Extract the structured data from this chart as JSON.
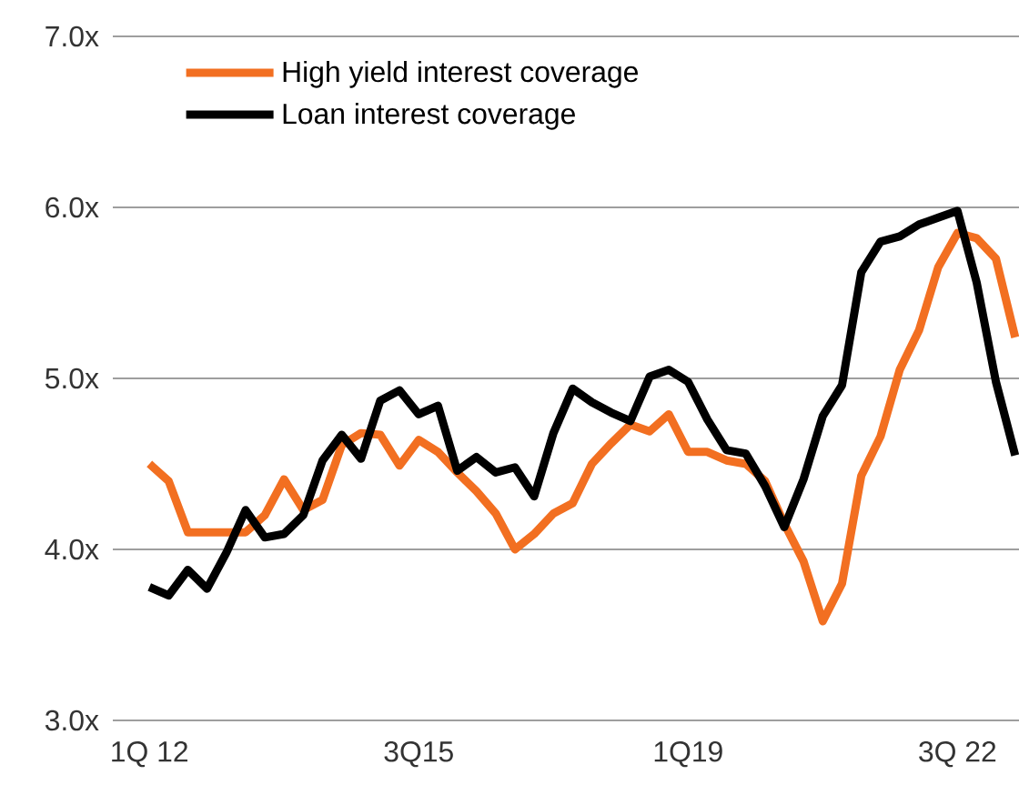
{
  "chart_data": {
    "type": "line",
    "categories": [
      "1Q 12",
      null,
      null,
      null,
      null,
      null,
      null,
      null,
      null,
      null,
      null,
      null,
      null,
      null,
      "3Q15",
      null,
      null,
      null,
      null,
      null,
      null,
      null,
      null,
      null,
      null,
      null,
      null,
      null,
      "1Q19",
      null,
      null,
      null,
      null,
      null,
      null,
      null,
      null,
      null,
      null,
      null,
      null,
      null,
      "3Q 22",
      null,
      null,
      null
    ],
    "series": [
      {
        "name": "High yield interest coverage",
        "color": "#f26f21",
        "values": [
          4.5,
          4.4,
          4.1,
          4.1,
          4.1,
          4.1,
          4.2,
          4.41,
          4.23,
          4.29,
          4.61,
          4.68,
          4.67,
          4.49,
          4.64,
          4.57,
          4.45,
          4.34,
          4.21,
          4.0,
          4.09,
          4.21,
          4.27,
          4.5,
          4.62,
          4.73,
          4.69,
          4.79,
          4.57,
          4.57,
          4.52,
          4.5,
          4.4,
          4.15,
          3.93,
          3.58,
          3.8,
          4.43,
          4.66,
          5.05,
          5.28,
          5.65,
          5.85,
          5.82,
          5.7,
          5.24
        ]
      },
      {
        "name": "Loan interest coverage",
        "color": "#000000",
        "values": [
          3.78,
          3.73,
          3.88,
          3.77,
          3.98,
          4.23,
          4.07,
          4.09,
          4.2,
          4.52,
          4.67,
          4.53,
          4.87,
          4.93,
          4.79,
          4.84,
          4.46,
          4.54,
          4.45,
          4.48,
          4.31,
          4.68,
          4.94,
          4.86,
          4.8,
          4.75,
          5.01,
          5.05,
          4.98,
          4.76,
          4.58,
          4.56,
          4.37,
          4.13,
          4.41,
          4.78,
          4.96,
          5.62,
          5.8,
          5.83,
          5.9,
          5.94,
          5.98,
          5.56,
          4.98,
          4.55
        ]
      }
    ],
    "ylim": [
      3,
      7
    ],
    "yticks": [
      {
        "value": 3,
        "label": "3.0x"
      },
      {
        "value": 4,
        "label": "4.0x"
      },
      {
        "value": 5,
        "label": "5.0x"
      },
      {
        "value": 6,
        "label": "6.0x"
      },
      {
        "value": 7,
        "label": "7.0x"
      }
    ],
    "grid": "y",
    "legend": "top left",
    "marker": "none",
    "line_style": "solid"
  }
}
